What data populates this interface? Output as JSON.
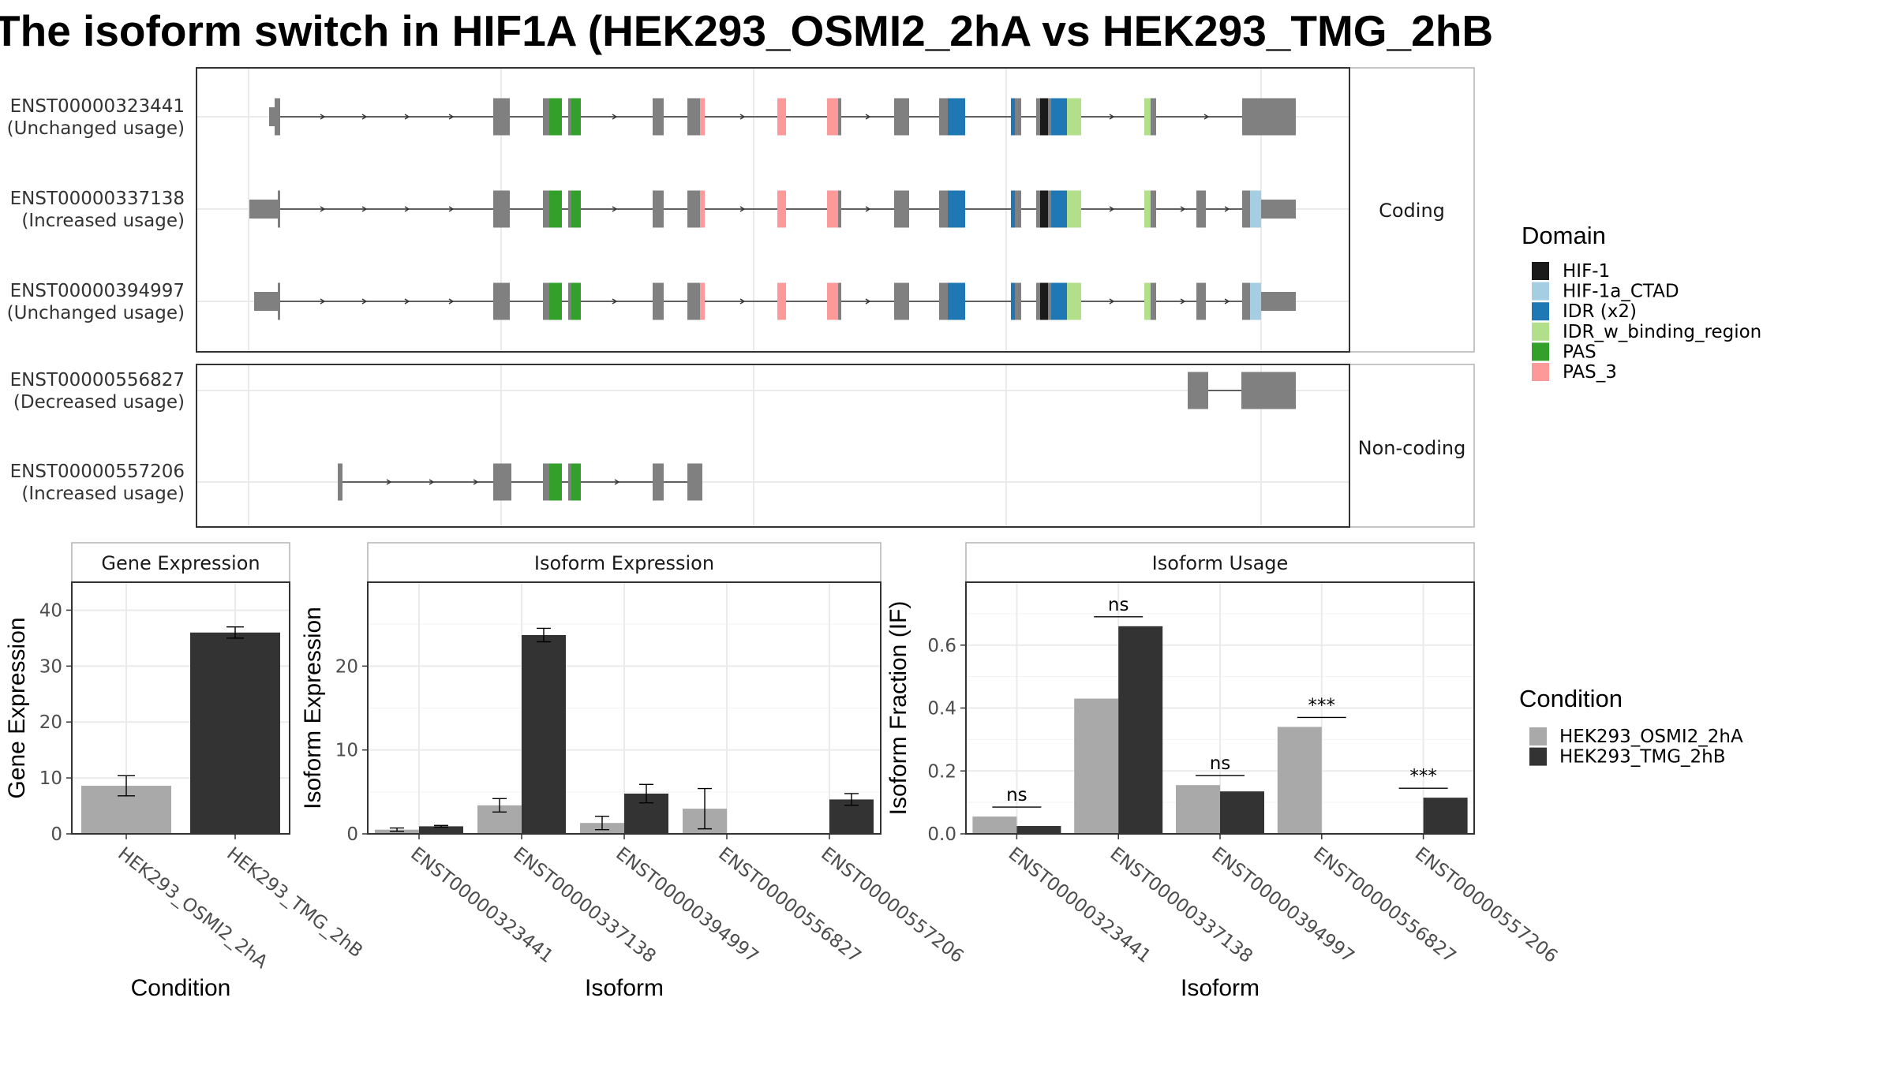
{
  "title": "The isoform switch in HIF1A (HEK293_OSMI2_2hA vs HEK293_TMG_2hB",
  "colors": {
    "exon": "#808080",
    "condA": "#a9a9a9",
    "condB": "#333333",
    "panel_border": "#333333",
    "strip_border": "#b3b3b3",
    "grid": "#ebebeb"
  },
  "structure": {
    "coding_strip": "Coding",
    "noncoding_strip": "Non-coding",
    "isoforms": [
      {
        "id": "ENST00000323441",
        "usage": "(Unchanged usage)",
        "group": "coding"
      },
      {
        "id": "ENST00000337138",
        "usage": "(Increased usage)",
        "group": "coding"
      },
      {
        "id": "ENST00000394997",
        "usage": "(Unchanged usage)",
        "group": "coding"
      },
      {
        "id": "ENST00000556827",
        "usage": "(Decreased usage)",
        "group": "noncoding"
      },
      {
        "id": "ENST00000557206",
        "usage": "(Increased usage)",
        "group": "noncoding"
      }
    ]
  },
  "domain_legend": {
    "title": "Domain",
    "items": [
      {
        "name": "HIF-1",
        "color": "#1a1a1a"
      },
      {
        "name": "HIF-1a_CTAD",
        "color": "#a6cee3"
      },
      {
        "name": "IDR (x2)",
        "color": "#1f78b4"
      },
      {
        "name": "IDR_w_binding_region",
        "color": "#b2df8a"
      },
      {
        "name": "PAS",
        "color": "#33a02c"
      },
      {
        "name": "PAS_3",
        "color": "#fb9a99"
      }
    ]
  },
  "condition_legend": {
    "title": "Condition",
    "items": [
      {
        "name": "HEK293_OSMI2_2hA",
        "color": "#a9a9a9"
      },
      {
        "name": "HEK293_TMG_2hB",
        "color": "#333333"
      }
    ]
  },
  "chart_data": [
    {
      "type": "bar",
      "title": "Gene Expression",
      "xlabel": "Condition",
      "ylabel": "Gene Expression",
      "ylim": [
        0,
        45
      ],
      "yticks": [
        0,
        10,
        20,
        30,
        40
      ],
      "categories": [
        "HEK293_OSMI2_2hA",
        "HEK293_TMG_2hB"
      ],
      "values": [
        8.6,
        36.0
      ],
      "error": [
        [
          6.8,
          10.4
        ],
        [
          35.0,
          37.0
        ]
      ],
      "colors": [
        "#a9a9a9",
        "#333333"
      ]
    },
    {
      "type": "bar",
      "title": "Isoform Expression",
      "xlabel": "Isoform",
      "ylabel": "Isoform Expression",
      "ylim": [
        0,
        30
      ],
      "yticks": [
        0,
        10,
        20
      ],
      "categories": [
        "ENST00000323441",
        "ENST00000337138",
        "ENST00000394997",
        "ENST00000556827",
        "ENST00000557206"
      ],
      "series": [
        {
          "name": "HEK293_OSMI2_2hA",
          "values": [
            0.5,
            3.4,
            1.3,
            3.0,
            0.0
          ],
          "error": [
            [
              0.3,
              0.7
            ],
            [
              2.6,
              4.2
            ],
            [
              0.5,
              2.1
            ],
            [
              0.6,
              5.4
            ],
            [
              0.0,
              0.0
            ]
          ]
        },
        {
          "name": "HEK293_TMG_2hB",
          "values": [
            0.9,
            23.7,
            4.8,
            0.0,
            4.1
          ],
          "error": [
            [
              0.8,
              1.0
            ],
            [
              22.9,
              24.5
            ],
            [
              3.7,
              5.9
            ],
            [
              0.0,
              0.0
            ],
            [
              3.4,
              4.8
            ]
          ]
        }
      ]
    },
    {
      "type": "bar",
      "title": "Isoform Usage",
      "xlabel": "Isoform",
      "ylabel": "Isoform Fraction (IF)",
      "ylim": [
        0,
        0.8
      ],
      "yticks": [
        "0.0",
        "0.2",
        "0.4",
        "0.6"
      ],
      "categories": [
        "ENST00000323441",
        "ENST00000337138",
        "ENST00000394997",
        "ENST00000556827",
        "ENST00000557206"
      ],
      "series": [
        {
          "name": "HEK293_OSMI2_2hA",
          "values": [
            0.055,
            0.43,
            0.155,
            0.34,
            0.0
          ]
        },
        {
          "name": "HEK293_TMG_2hB",
          "values": [
            0.025,
            0.66,
            0.135,
            0.0,
            0.115
          ]
        }
      ],
      "significance": [
        "ns",
        "ns",
        "ns",
        "***",
        "***"
      ]
    }
  ]
}
